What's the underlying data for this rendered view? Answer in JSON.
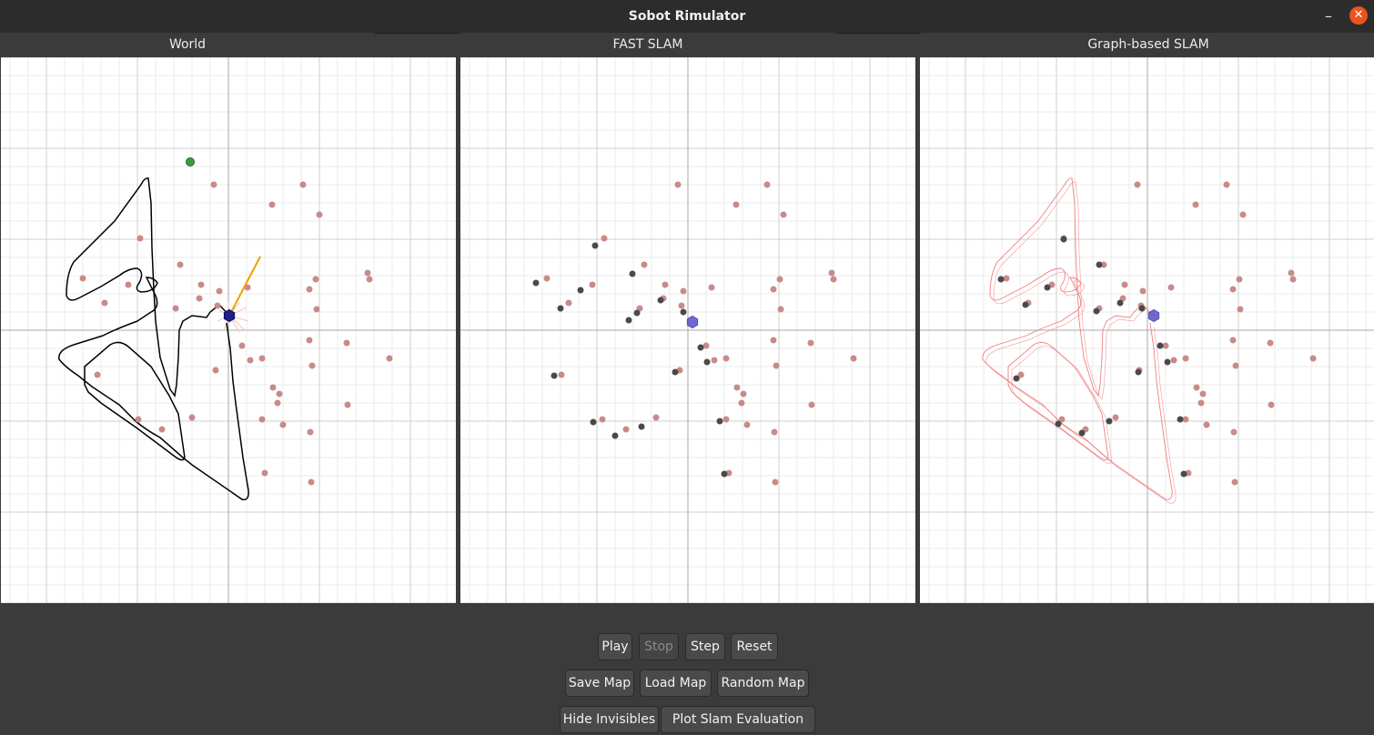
{
  "window": {
    "title": "Sobot Rimulator"
  },
  "panels": {
    "world": {
      "title": "World"
    },
    "fast_slam": {
      "title": "FAST SLAM"
    },
    "graph_slam": {
      "title": "Graph-based SLAM"
    }
  },
  "buttons": {
    "play": "Play",
    "stop": "Stop",
    "step": "Step",
    "reset": "Reset",
    "save_map": "Save Map",
    "load_map": "Load Map",
    "random_map": "Random Map",
    "hide_invisibles": "Hide Invisibles",
    "plot_slam_evaluation": "Plot Slam Evaluation"
  },
  "colors": {
    "landmark": "#c98a8a",
    "estimate": "#4a4a4a",
    "robot": "#1e1e8c",
    "robot_est": "#5a50c8",
    "goal": "#3d9a3d",
    "heading": "#f0a000",
    "trajectory_world": "#000000",
    "trajectory_graph": "#f08080",
    "accent_close": "#e95420"
  }
}
